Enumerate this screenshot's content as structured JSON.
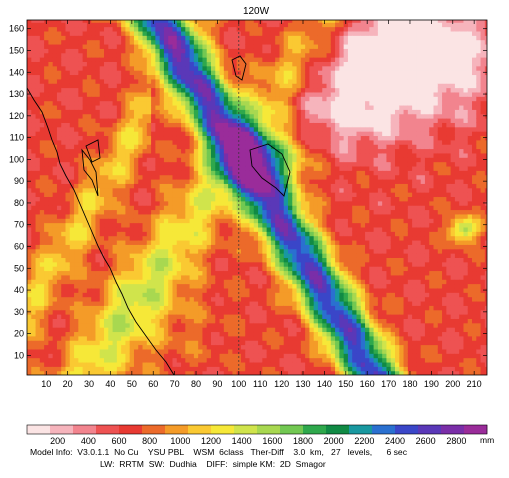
{
  "chart_data": {
    "type": "heatmap",
    "title": "120W",
    "x_ticks": [
      10,
      20,
      30,
      40,
      50,
      60,
      70,
      80,
      90,
      100,
      110,
      120,
      130,
      140,
      150,
      160,
      170,
      180,
      190,
      200,
      210
    ],
    "y_ticks": [
      10,
      20,
      30,
      40,
      50,
      60,
      70,
      80,
      90,
      100,
      110,
      120,
      130,
      140,
      150,
      160
    ],
    "xlim": [
      1,
      216
    ],
    "ylim": [
      1,
      164
    ],
    "colorbar": {
      "ticks": [
        200,
        400,
        600,
        800,
        1000,
        1200,
        1400,
        1600,
        1800,
        2000,
        2200,
        2400,
        2600,
        2800
      ],
      "unit": "mm",
      "range": [
        0,
        3000
      ],
      "colors": [
        "#fbe4e4",
        "#f6b4bc",
        "#f2848e",
        "#ee5252",
        "#e83a32",
        "#ec6a2a",
        "#f49b28",
        "#fac932",
        "#f6e838",
        "#d0e44c",
        "#a8d850",
        "#72c852",
        "#2ea84c",
        "#108a44",
        "#1898a0",
        "#2a70d0",
        "#3a46c8",
        "#5a38b8",
        "#7a2ea8",
        "#9a2c9a"
      ]
    },
    "meridian_x": 100
  },
  "info": {
    "line1": "Model Info:  V3.0.1.1  No Cu    YSU PBL    WSM  6class   Ther-Diff    3.0  km,   27   levels,      6 sec",
    "line2": "LW:  RRTM  SW:  Dudhia    DIFF:  simple KM:  2D  Smagor"
  }
}
